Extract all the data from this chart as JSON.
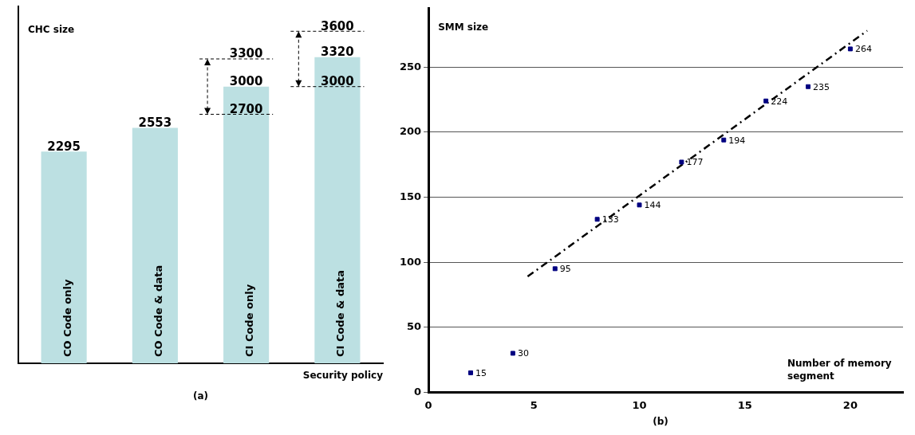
{
  "chart_data": [
    {
      "type": "bar",
      "categories": [
        "CO Code only",
        "CO Code & data",
        "CI Code only",
        "CI Code & data"
      ],
      "values": [
        2295,
        2553,
        3000,
        3320
      ],
      "color": "#bce0e2",
      "ylim": [
        0,
        3870
      ],
      "data_labels": true,
      "grid": false,
      "legend": false,
      "xlabel": "Security policy",
      "ylabel": "CHC size",
      "annotations": [
        "(a)"
      ],
      "ref_lines": [
        {
          "axis": "y",
          "value": 2700,
          "label": "2700",
          "line_style": "dashed"
        },
        {
          "axis": "y",
          "value": 3300,
          "label": "3300",
          "line_style": "dashed"
        },
        {
          "axis": "y",
          "value": 3000,
          "label": "3000",
          "line_style": "dashed"
        },
        {
          "axis": "y",
          "value": 3600,
          "label": "3600",
          "line_style": "dashed"
        }
      ]
    },
    {
      "type": "scatter",
      "xlim": [
        0,
        22.5
      ],
      "ylim": [
        0,
        295
      ],
      "xticks": [
        0,
        5,
        10,
        15,
        20
      ],
      "yticks": [
        0,
        50,
        100,
        150,
        200,
        250
      ],
      "grid": "y",
      "legend": false,
      "marker": "square",
      "data_labels": true,
      "xlabel": "Number of memory segment",
      "ylabel": "SMM size",
      "annotations": [
        "(b)"
      ],
      "series": [
        {
          "type": "scatter",
          "color": "#000080",
          "x": [
            2,
            4,
            6,
            8,
            10,
            12,
            14,
            16,
            18,
            20
          ],
          "values": [
            15,
            30,
            95,
            133,
            144,
            177,
            194,
            224,
            235,
            264
          ]
        },
        {
          "type": "line",
          "color": "#000000",
          "line_style": "dashed",
          "marker": "none",
          "x": [
            4.7,
            20.8
          ],
          "values": [
            89,
            278
          ],
          "value_labels": [
            null,
            null
          ]
        }
      ]
    }
  ]
}
